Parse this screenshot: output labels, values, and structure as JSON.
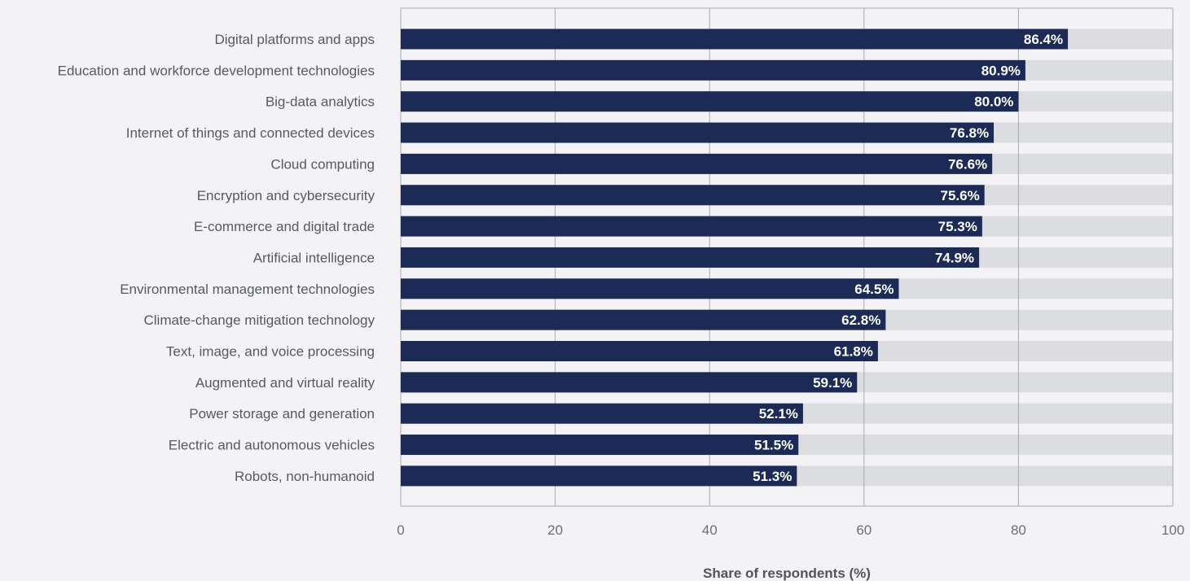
{
  "chart_data": {
    "type": "bar",
    "orientation": "horizontal",
    "categories": [
      "Digital platforms and apps",
      "Education and workforce development technologies",
      "Big-data analytics",
      "Internet of things and connected devices",
      "Cloud computing",
      "Encryption and cybersecurity",
      "E-commerce and digital trade",
      "Artificial intelligence",
      "Environmental management technologies",
      "Climate-change mitigation technology",
      "Text, image, and voice processing",
      "Augmented and virtual reality",
      "Power storage and generation",
      "Electric and autonomous vehicles",
      "Robots, non-humanoid"
    ],
    "values": [
      86.4,
      80.9,
      80.0,
      76.8,
      76.6,
      75.6,
      75.3,
      74.9,
      64.5,
      62.8,
      61.8,
      59.1,
      52.1,
      51.5,
      51.3
    ],
    "data_labels": [
      "86.4%",
      "80.9%",
      "80.0%",
      "76.8%",
      "76.6%",
      "75.6%",
      "75.3%",
      "74.9%",
      "64.5%",
      "62.8%",
      "61.8%",
      "59.1%",
      "52.1%",
      "51.5%",
      "51.3%"
    ],
    "title": "",
    "xlabel": "Share of respondents (%)",
    "ylabel": "",
    "xlim": [
      0,
      100
    ],
    "xticks": [
      0,
      20,
      40,
      60,
      80,
      100
    ],
    "xtick_labels": [
      "0",
      "20",
      "40",
      "60",
      "80",
      "100"
    ],
    "grid": true,
    "legend": "none",
    "colors": {
      "bar": "#1c2b55",
      "track": "#dcdde1",
      "grid": "#a9abaf",
      "background": "#f3f3f5",
      "data_label": "#ffffff"
    }
  }
}
